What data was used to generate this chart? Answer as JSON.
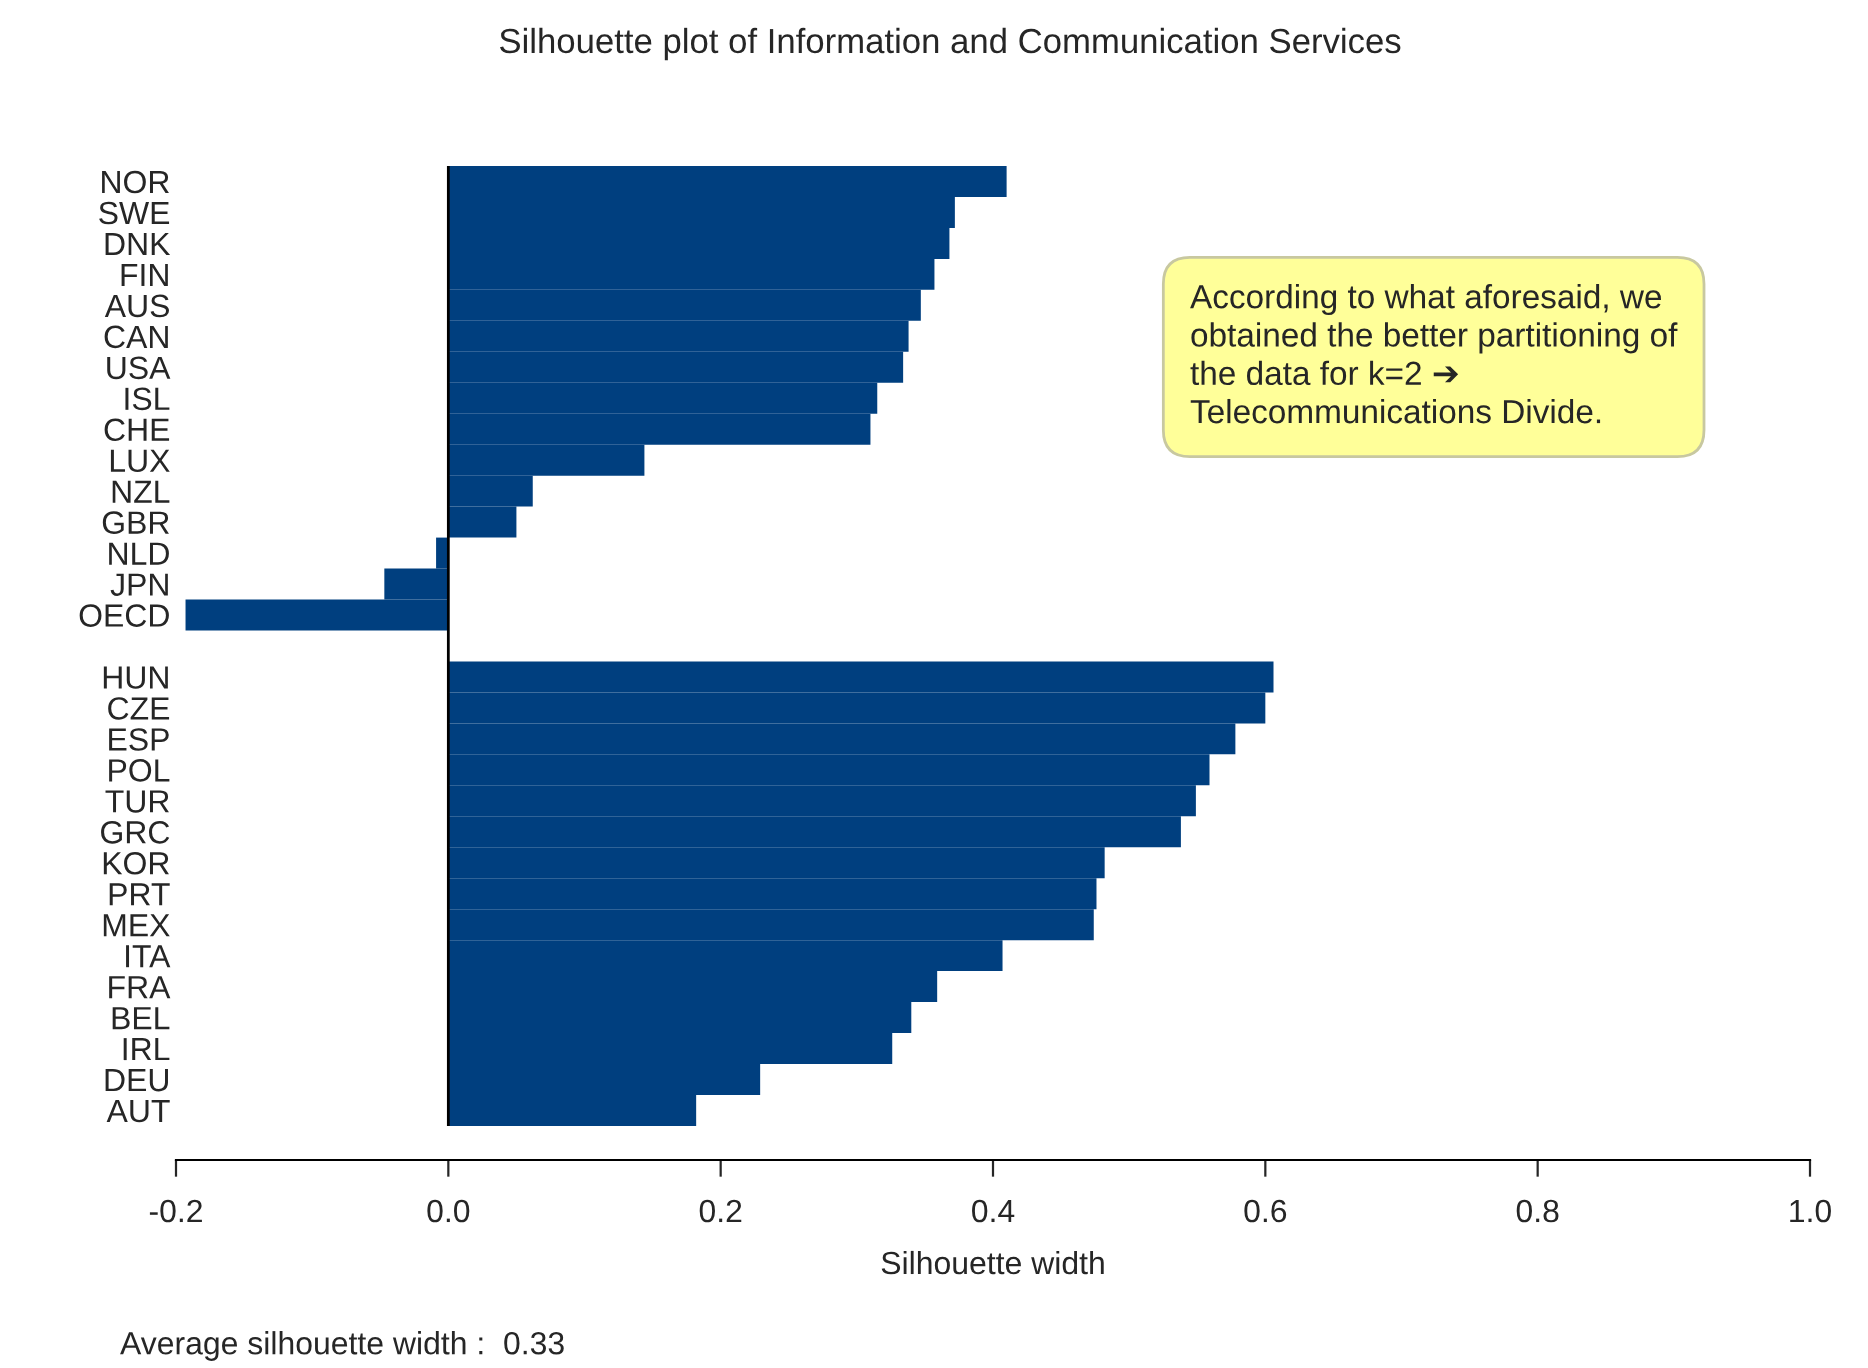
{
  "chart_data": {
    "type": "bar",
    "orientation": "horizontal",
    "title": "Silhouette plot of Information and Communication Services",
    "xlabel": "Silhouette width",
    "categories": [
      "NOR",
      "SWE",
      "DNK",
      "FIN",
      "AUS",
      "CAN",
      "USA",
      "ISL",
      "CHE",
      "LUX",
      "NZL",
      "GBR",
      "NLD",
      "JPN",
      "OECD",
      null,
      "HUN",
      "CZE",
      "ESP",
      "POL",
      "TUR",
      "GRC",
      "KOR",
      "PRT",
      "MEX",
      "ITA",
      "FRA",
      "BEL",
      "IRL",
      "DEU",
      "AUT"
    ],
    "values": [
      0.41,
      0.372,
      0.368,
      0.357,
      0.347,
      0.338,
      0.334,
      0.315,
      0.31,
      0.144,
      0.062,
      0.05,
      -0.009,
      -0.047,
      -0.193,
      null,
      0.606,
      0.6,
      0.578,
      0.559,
      0.549,
      0.538,
      0.482,
      0.476,
      0.474,
      0.407,
      0.359,
      0.34,
      0.326,
      0.229,
      0.182
    ],
    "color": "#003f7f",
    "xlim": [
      -0.2,
      1.0
    ],
    "xticks": [
      {
        "value": -0.2,
        "label": "-0.2"
      },
      {
        "value": 0,
        "label": "0.0"
      },
      {
        "value": 0.2,
        "label": "0.2"
      },
      {
        "value": 0.4,
        "label": "0.4"
      },
      {
        "value": 0.6,
        "label": "0.6"
      },
      {
        "value": 0.8,
        "label": "0.8"
      },
      {
        "value": 1.0,
        "label": "1.0"
      }
    ],
    "ref_lines": [
      {
        "axis": "x",
        "value": 0,
        "color": "#000000"
      }
    ],
    "annotations": [
      "According to what aforesaid, we\nobtained the better partitioning of\nthe data for k=2 ➔\nTelecommunications Divide.",
      "Average silhouette width :  0.33"
    ],
    "grid": false
  }
}
